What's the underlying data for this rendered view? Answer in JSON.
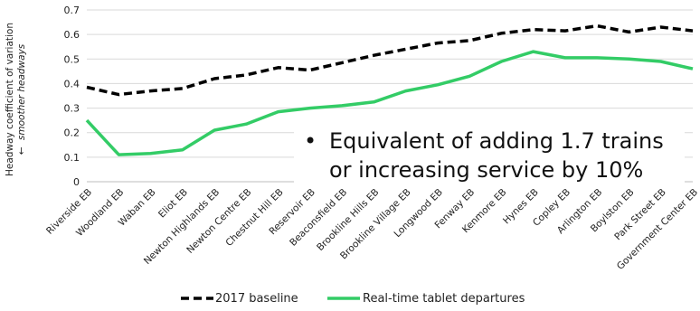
{
  "chart_data": {
    "type": "line",
    "categories": [
      "Riverside EB",
      "Woodland EB",
      "Waban EB",
      "Eliot EB",
      "Newton Highlands EB",
      "Newton Centre EB",
      "Chestnut Hill EB",
      "Reservoir EB",
      "Beaconsfield EB",
      "Brookline Hills EB",
      "Brookline Village EB",
      "Longwood EB",
      "Fenway EB",
      "Kenmore EB",
      "Hynes EB",
      "Copley EB",
      "Arlington EB",
      "Boylston EB",
      "Park Street EB",
      "Government Center EB"
    ],
    "series": [
      {
        "name": "2017 baseline",
        "color": "#000000",
        "dash": "dashed",
        "values": [
          0.385,
          0.355,
          0.37,
          0.38,
          0.42,
          0.435,
          0.465,
          0.455,
          0.485,
          0.515,
          0.54,
          0.565,
          0.575,
          0.605,
          0.62,
          0.615,
          0.635,
          0.61,
          0.63,
          0.615
        ]
      },
      {
        "name": "Real-time tablet departures",
        "color": "#33cc66",
        "dash": "solid",
        "values": [
          0.25,
          0.11,
          0.115,
          0.13,
          0.21,
          0.235,
          0.285,
          0.3,
          0.31,
          0.325,
          0.37,
          0.395,
          0.43,
          0.49,
          0.53,
          0.505,
          0.505,
          0.5,
          0.49,
          0.46
        ]
      }
    ],
    "ylabel_line1": "Headway coefficient of variation",
    "ylabel_arrow": "←",
    "ylabel_line2": "smoother headways",
    "ylim": [
      0,
      0.7
    ],
    "yticks": [
      0,
      0.1,
      0.2,
      0.3,
      0.4,
      0.5,
      0.6,
      0.7
    ],
    "ytick_labels": [
      "0",
      "0.1",
      "0.2",
      "0.3",
      "0.4",
      "0.5",
      "0.6",
      "0.7"
    ],
    "grid": true,
    "legend_position": "bottom-center",
    "annotation": {
      "bullet": "•",
      "line1": "Equivalent of adding 1.7 trains",
      "line2": "or increasing service by 10%"
    }
  }
}
